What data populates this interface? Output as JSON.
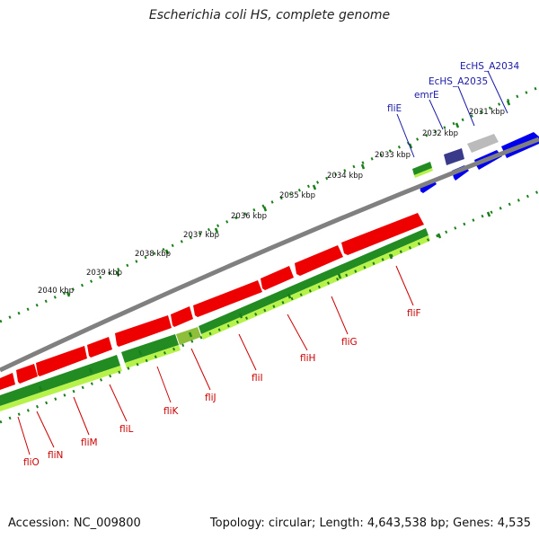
{
  "title": "Escherichia coli HS, complete genome",
  "footer": {
    "accession": "Accession: NC_009800",
    "stats": "Topology: circular; Length: 4,643,538 bp; Genes: 4,535"
  },
  "colors": {
    "gene_red": "#ee0000",
    "gene_blue": "#0000ee",
    "gene_navy": "#3a3a8a",
    "gene_grey": "#bbbbbb",
    "cds_green": "#228b22",
    "cds_lime": "#b7f24a",
    "backbone": "#808080",
    "tick_green": "#1a7f1a"
  },
  "scale_labels": [
    "2031 kbp",
    "2032 kbp",
    "2033 kbp",
    "2034 kbp",
    "2035 kbp",
    "2036 kbp",
    "2037 kbp",
    "2038 kbp",
    "2039 kbp",
    "2040 kbp"
  ],
  "gene_labels_forward": [
    "EcHS_A2034",
    "EcHS_A2035",
    "emrE",
    "fliE"
  ],
  "gene_labels_reverse": [
    "fliF",
    "fliG",
    "fliH",
    "fliI",
    "fliJ",
    "fliK",
    "fliL",
    "fliM",
    "fliN",
    "fliO"
  ]
}
